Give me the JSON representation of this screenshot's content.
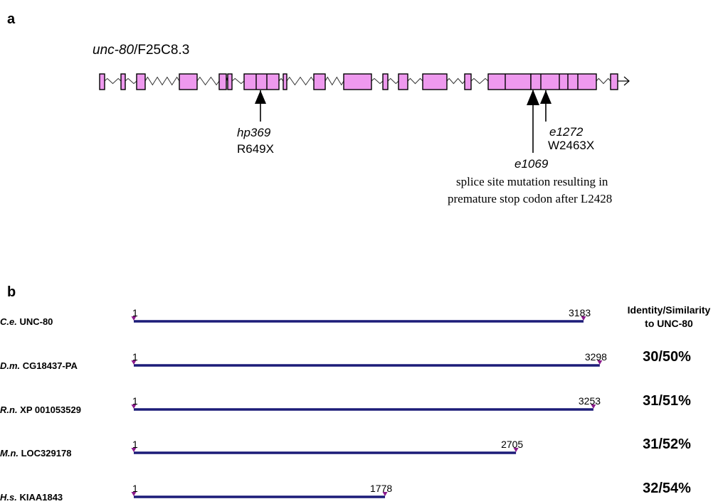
{
  "panel_a": {
    "label": "a",
    "gene_italic": "unc-80",
    "gene_rest": "/F25C8.3",
    "mutations": [
      {
        "allele": "hp369",
        "change": "R649X"
      },
      {
        "allele": "e1272",
        "change": "W2463X"
      },
      {
        "allele": "e1069",
        "note_line1": "splice site mutation resulting in",
        "note_line2": "premature stop codon after L2428"
      }
    ]
  },
  "panel_b": {
    "label": "b",
    "header_line1": "Identity/Similarity",
    "header_line2": "to UNC-80",
    "proteins": [
      {
        "species": "C.e.",
        "name": "UNC-80",
        "start_label": "1",
        "end_label": "3183",
        "length": 3183,
        "identity": ""
      },
      {
        "species": "D.m.",
        "name": "CG18437-PA",
        "start_label": "1",
        "end_label": "3298",
        "length": 3298,
        "identity": "30/50%"
      },
      {
        "species": "R.n.",
        "name": "XP 001053529",
        "start_label": "1",
        "end_label": "3253",
        "length": 3253,
        "identity": "31/51%"
      },
      {
        "species": "M.n.",
        "name": "LOC329178",
        "start_label": "1",
        "end_label": "2705",
        "length": 2705,
        "identity": "31/52%"
      },
      {
        "species": "H.s.",
        "name": "KIAA1843",
        "start_label": "1",
        "end_label": "1778",
        "length": 1778,
        "identity": "32/54%"
      }
    ]
  },
  "colors": {
    "exon_fill": "#EE99EE",
    "outline": "#000000",
    "protein_line": "#1C1C78",
    "marker": "#8B1A8B"
  }
}
